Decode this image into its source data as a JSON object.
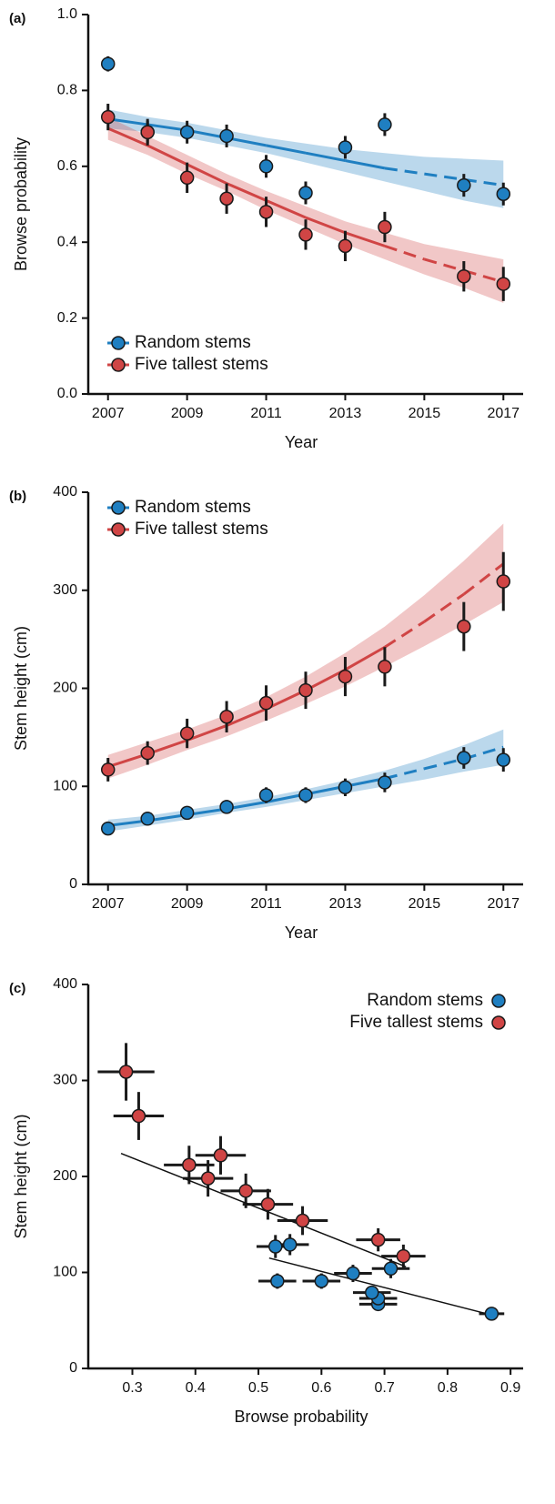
{
  "chart_data": [
    {
      "type": "line",
      "panel_label": "(a)",
      "x_label": "Year",
      "y_label": "Browse probability",
      "x": [
        2007,
        2008,
        2009,
        2010,
        2011,
        2012,
        2013,
        2014,
        2016,
        2017
      ],
      "xlim": [
        2006.5,
        2017.5
      ],
      "xticks": [
        2007,
        2009,
        2011,
        2013,
        2015,
        2017
      ],
      "ylim": [
        0,
        1
      ],
      "yticks": [
        {
          "value": 0,
          "label": "0.0"
        },
        0.2,
        0.4,
        0.6,
        0.8,
        {
          "value": 1,
          "label": "1.0"
        }
      ],
      "legend": "lower left",
      "dashed_after": 2014,
      "fit_x": [
        2007,
        2008,
        2009,
        2010,
        2011,
        2012,
        2013,
        2014,
        2015,
        2016,
        2017
      ],
      "series": [
        {
          "name": "Random stems",
          "color": "#1f7fc1",
          "values": [
            0.87,
            0.69,
            0.69,
            0.68,
            0.6,
            0.53,
            0.65,
            0.71,
            0.55,
            0.527
          ],
          "errors": [
            0.02,
            0.03,
            0.03,
            0.03,
            0.03,
            0.03,
            0.03,
            0.03,
            0.03,
            0.03
          ],
          "fit": [
            0.725,
            0.71,
            0.695,
            0.675,
            0.655,
            0.635,
            0.615,
            0.595,
            0.58,
            0.565,
            0.55
          ],
          "fit_lower": [
            0.7,
            0.69,
            0.675,
            0.655,
            0.635,
            0.61,
            0.585,
            0.56,
            0.535,
            0.51,
            0.49
          ],
          "fit_upper": [
            0.75,
            0.73,
            0.715,
            0.695,
            0.675,
            0.66,
            0.645,
            0.635,
            0.625,
            0.62,
            0.615
          ]
        },
        {
          "name": "Five tallest stems",
          "color": "#d04545",
          "values": [
            0.73,
            0.69,
            0.57,
            0.515,
            0.48,
            0.42,
            0.39,
            0.44,
            0.31,
            0.29
          ],
          "errors": [
            0.035,
            0.035,
            0.04,
            0.04,
            0.04,
            0.04,
            0.04,
            0.04,
            0.04,
            0.045
          ],
          "fit": [
            0.7,
            0.655,
            0.605,
            0.555,
            0.51,
            0.465,
            0.425,
            0.39,
            0.355,
            0.325,
            0.295
          ],
          "fit_lower": [
            0.67,
            0.63,
            0.58,
            0.535,
            0.485,
            0.44,
            0.395,
            0.355,
            0.315,
            0.28,
            0.24
          ],
          "fit_upper": [
            0.73,
            0.68,
            0.63,
            0.58,
            0.535,
            0.495,
            0.455,
            0.425,
            0.395,
            0.375,
            0.355
          ]
        }
      ]
    },
    {
      "type": "line",
      "panel_label": "(b)",
      "x_label": "Year",
      "y_label": "Stem height (cm)",
      "x": [
        2007,
        2008,
        2009,
        2010,
        2011,
        2012,
        2013,
        2014,
        2016,
        2017
      ],
      "xlim": [
        2006.5,
        2017.5
      ],
      "xticks": [
        2007,
        2009,
        2011,
        2013,
        2015,
        2017
      ],
      "ylim": [
        0,
        400
      ],
      "yticks": [
        0,
        100,
        200,
        300,
        400
      ],
      "legend": "upper left",
      "dashed_after": 2014,
      "fit_x": [
        2007,
        2008,
        2009,
        2010,
        2011,
        2012,
        2013,
        2014,
        2015,
        2016,
        2017
      ],
      "series": [
        {
          "name": "Random stems",
          "color": "#1f7fc1",
          "values": [
            57,
            67,
            73,
            79,
            91,
            91,
            99,
            104,
            129,
            127
          ],
          "errors": [
            5,
            5,
            6,
            7,
            8,
            8,
            9,
            10,
            11,
            12
          ],
          "fit": [
            60,
            65,
            71,
            77,
            84,
            92,
            100,
            108,
            118,
            128,
            140
          ],
          "fit_lower": [
            54,
            60,
            66,
            73,
            79,
            86,
            93,
            100,
            107,
            115,
            122
          ],
          "fit_upper": [
            66,
            70,
            76,
            82,
            89,
            97,
            106,
            116,
            128,
            142,
            158
          ]
        },
        {
          "name": "Five tallest stems",
          "color": "#d04545",
          "values": [
            117,
            134,
            154,
            171,
            185,
            198,
            212,
            222,
            263,
            309
          ],
          "errors": [
            12,
            12,
            15,
            16,
            18,
            19,
            20,
            20,
            25,
            30
          ],
          "fit": [
            120,
            133,
            147,
            162,
            179,
            198,
            219,
            242,
            268,
            296,
            327
          ],
          "fit_lower": [
            108,
            122,
            137,
            151,
            167,
            184,
            202,
            222,
            243,
            265,
            288
          ],
          "fit_upper": [
            132,
            145,
            158,
            173,
            191,
            212,
            236,
            263,
            295,
            330,
            368
          ]
        }
      ]
    },
    {
      "type": "scatter",
      "panel_label": "(c)",
      "x_label": "Browse probability",
      "y_label": "Stem height (cm)",
      "xlim": [
        0.23,
        0.92
      ],
      "xticks": [
        0.3,
        0.4,
        0.5,
        0.6,
        0.7,
        0.8,
        0.9
      ],
      "ylim": [
        0,
        400
      ],
      "yticks": [
        0,
        100,
        200,
        300,
        400
      ],
      "legend": "upper right",
      "series": [
        {
          "name": "Random stems",
          "color": "#1f7fc1",
          "x": [
            0.87,
            0.69,
            0.69,
            0.68,
            0.6,
            0.53,
            0.65,
            0.71,
            0.55,
            0.527
          ],
          "values": [
            57,
            67,
            73,
            79,
            91,
            91,
            99,
            104,
            129,
            127
          ],
          "xerr": [
            0.02,
            0.03,
            0.03,
            0.03,
            0.03,
            0.03,
            0.03,
            0.03,
            0.03,
            0.03
          ],
          "yerr": [
            5,
            5,
            6,
            7,
            8,
            8,
            9,
            10,
            11,
            12
          ]
        },
        {
          "name": "Five tallest stems",
          "color": "#d04545",
          "x": [
            0.73,
            0.69,
            0.57,
            0.515,
            0.48,
            0.42,
            0.39,
            0.44,
            0.31,
            0.29
          ],
          "values": [
            117,
            134,
            154,
            171,
            185,
            198,
            212,
            222,
            263,
            309
          ],
          "xerr": [
            0.035,
            0.035,
            0.04,
            0.04,
            0.04,
            0.04,
            0.04,
            0.04,
            0.04,
            0.045
          ],
          "yerr": [
            12,
            12,
            15,
            16,
            18,
            19,
            20,
            20,
            25,
            30
          ]
        }
      ],
      "lines": [
        {
          "color": "#111111",
          "x": [
            0.282,
            0.734
          ],
          "y": [
            224,
            106
          ]
        },
        {
          "color": "#111111",
          "x": [
            0.517,
            0.868
          ],
          "y": [
            115,
            56
          ]
        }
      ]
    }
  ]
}
